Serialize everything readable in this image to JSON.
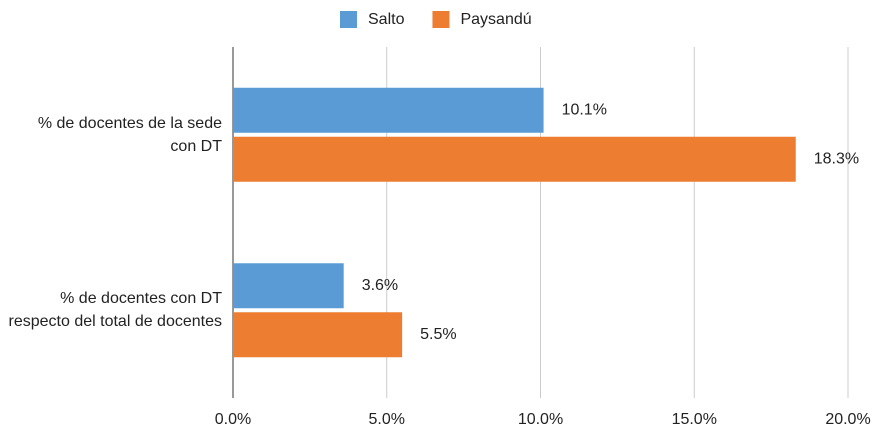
{
  "chart_data": {
    "type": "hbar",
    "categories": [
      "% de docentes de la sede con DT",
      "% de docentes con DT respecto del total de docentes"
    ],
    "series": [
      {
        "name": "Salto",
        "color": "#5b9bd5",
        "values": [
          10.1,
          3.6
        ],
        "value_labels": [
          "10.1%",
          "3.6%"
        ]
      },
      {
        "name": "Paysandú",
        "color": "#ed7d31",
        "values": [
          18.3,
          5.5
        ],
        "value_labels": [
          "18.3%",
          "5.5%"
        ]
      }
    ],
    "xlim": [
      0,
      20
    ],
    "xticks": [
      {
        "value": 0,
        "label": "0.0%"
      },
      {
        "value": 5,
        "label": "5.0%"
      },
      {
        "value": 10,
        "label": "10.0%"
      },
      {
        "value": 15,
        "label": "15.0%"
      },
      {
        "value": 20,
        "label": "20.0%"
      }
    ],
    "grid": true,
    "legend": "top"
  }
}
